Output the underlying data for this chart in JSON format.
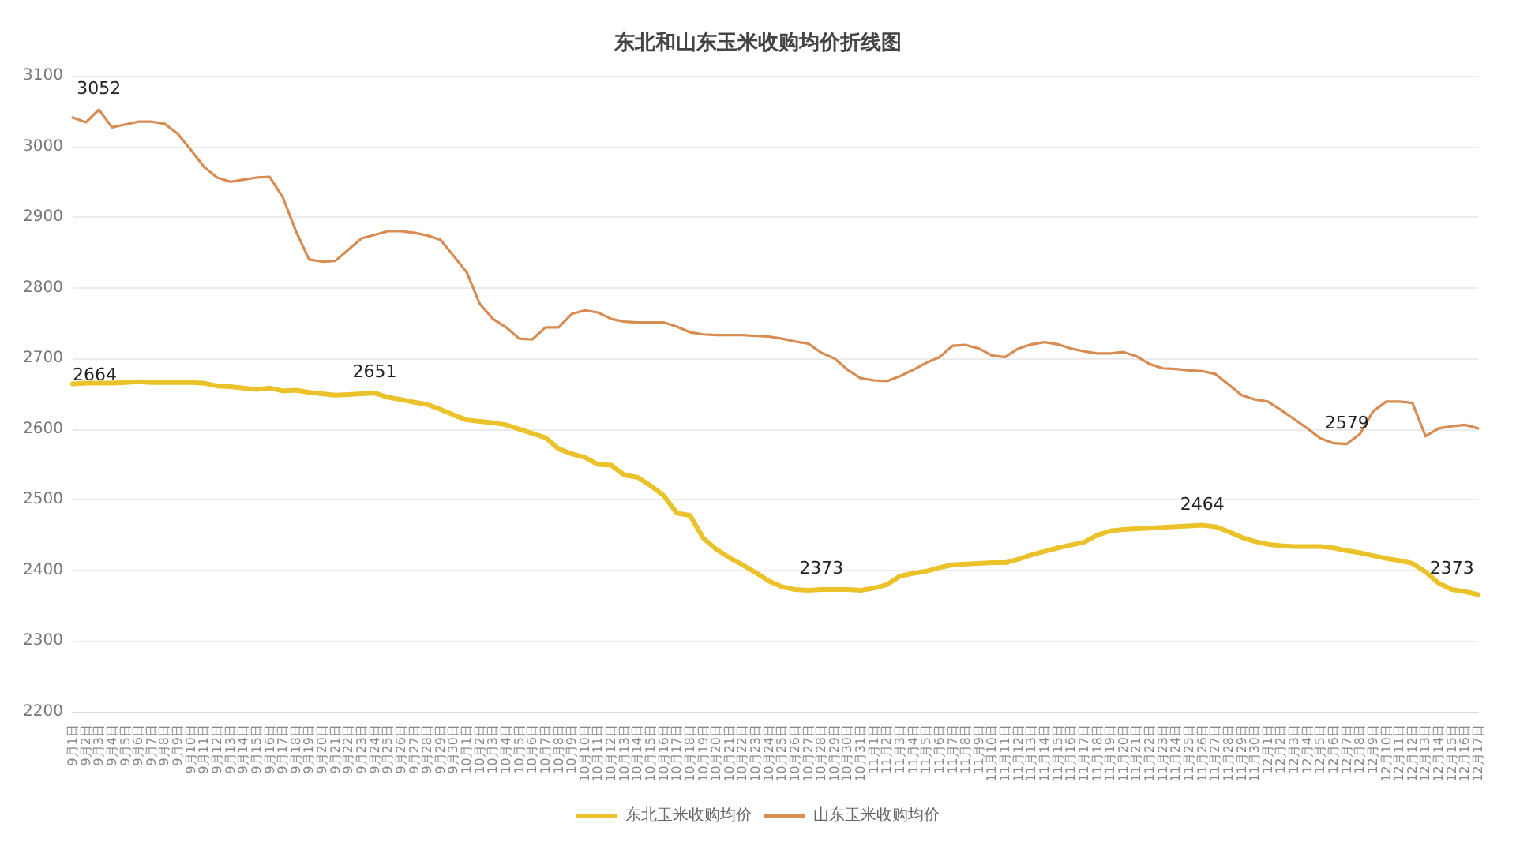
{
  "chart_data": {
    "type": "line",
    "title": "东北和山东玉米收购均价折线图",
    "categories": [
      "9月1日",
      "9月2日",
      "9月3日",
      "9月4日",
      "9月5日",
      "9月6日",
      "9月7日",
      "9月8日",
      "9月9日",
      "9月10日",
      "9月11日",
      "9月12日",
      "9月13日",
      "9月14日",
      "9月15日",
      "9月16日",
      "9月17日",
      "9月18日",
      "9月19日",
      "9月20日",
      "9月21日",
      "9月22日",
      "9月23日",
      "9月24日",
      "9月25日",
      "9月26日",
      "9月27日",
      "9月28日",
      "9月29日",
      "9月30日",
      "10月1日",
      "10月2日",
      "10月3日",
      "10月4日",
      "10月5日",
      "10月6日",
      "10月7日",
      "10月8日",
      "10月9日",
      "10月10日",
      "10月11日",
      "10月12日",
      "10月13日",
      "10月14日",
      "10月15日",
      "10月16日",
      "10月17日",
      "10月18日",
      "10月19日",
      "10月20日",
      "10月21日",
      "10月22日",
      "10月23日",
      "10月24日",
      "10月25日",
      "10月26日",
      "10月27日",
      "10月28日",
      "10月29日",
      "10月30日",
      "10月31日",
      "11月1日",
      "11月2日",
      "11月3日",
      "11月4日",
      "11月5日",
      "11月6日",
      "11月7日",
      "11月8日",
      "11月9日",
      "11月10日",
      "11月11日",
      "11月12日",
      "11月13日",
      "11月14日",
      "11月15日",
      "11月16日",
      "11月17日",
      "11月18日",
      "11月19日",
      "11月20日",
      "11月21日",
      "11月22日",
      "11月23日",
      "11月24日",
      "11月25日",
      "11月26日",
      "11月27日",
      "11月28日",
      "11月29日",
      "11月30日",
      "12月1日",
      "12月2日",
      "12月3日",
      "12月4日",
      "12月5日",
      "12月6日",
      "12月7日",
      "12月8日",
      "12月9日",
      "12月10日",
      "12月11日",
      "12月12日",
      "12月13日",
      "12月14日",
      "12月15日",
      "12月16日",
      "12月17日"
    ],
    "series": [
      {
        "name": "东北玉米收购均价",
        "color": "#ecc22a",
        "values": [
          2664,
          2665,
          2665,
          2665,
          2666,
          2667,
          2666,
          2666,
          2666,
          2666,
          2665,
          2661,
          2660,
          2658,
          2656,
          2658,
          2654,
          2655,
          2652,
          2650,
          2648,
          2649,
          2650,
          2651,
          2645,
          2642,
          2638,
          2635,
          2628,
          2620,
          2613,
          2611,
          2609,
          2606,
          2600,
          2594,
          2588,
          2572,
          2565,
          2560,
          2550,
          2549,
          2535,
          2532,
          2520,
          2506,
          2481,
          2478,
          2446,
          2430,
          2418,
          2408,
          2397,
          2385,
          2377,
          2373,
          2372,
          2373,
          2373,
          2373,
          2372,
          2375,
          2380,
          2392,
          2396,
          2399,
          2404,
          2408,
          2409,
          2410,
          2411,
          2411,
          2416,
          2422,
          2427,
          2432,
          2436,
          2440,
          2450,
          2456,
          2458,
          2459,
          2460,
          2461,
          2462,
          2463,
          2464,
          2462,
          2455,
          2447,
          2441,
          2437,
          2435,
          2434,
          2434,
          2434,
          2432,
          2428,
          2425,
          2421,
          2417,
          2414,
          2410,
          2398,
          2382,
          2373,
          2370,
          2366
        ],
        "value_labels": [
          "2664",
          null,
          null,
          null,
          null,
          null,
          null,
          null,
          null,
          null,
          null,
          null,
          null,
          null,
          null,
          null,
          null,
          null,
          null,
          null,
          null,
          null,
          null,
          "2651",
          null,
          null,
          null,
          null,
          null,
          null,
          null,
          null,
          null,
          null,
          null,
          null,
          null,
          null,
          null,
          null,
          null,
          null,
          null,
          null,
          null,
          null,
          null,
          null,
          null,
          null,
          null,
          null,
          null,
          null,
          null,
          null,
          null,
          "2373",
          null,
          null,
          null,
          null,
          null,
          null,
          null,
          null,
          null,
          null,
          null,
          null,
          null,
          null,
          null,
          null,
          null,
          null,
          null,
          null,
          null,
          null,
          null,
          null,
          null,
          null,
          null,
          null,
          "2464",
          null,
          null,
          null,
          null,
          null,
          null,
          null,
          null,
          null,
          null,
          null,
          null,
          null,
          null,
          null,
          null,
          null,
          null,
          "2373",
          null,
          null
        ]
      },
      {
        "name": "山东玉米收购均价",
        "color": "#d88c52",
        "values": [
          3041,
          3034,
          3052,
          3027,
          3031,
          3035,
          3035,
          3032,
          3018,
          2995,
          2971,
          2956,
          2950,
          2953,
          2956,
          2957,
          2928,
          2880,
          2840,
          2837,
          2838,
          2854,
          2870,
          2875,
          2880,
          2880,
          2878,
          2874,
          2868,
          2845,
          2822,
          2777,
          2756,
          2744,
          2728,
          2727,
          2744,
          2744,
          2763,
          2768,
          2765,
          2756,
          2752,
          2751,
          2751,
          2751,
          2745,
          2737,
          2734,
          2733,
          2733,
          2733,
          2732,
          2731,
          2728,
          2724,
          2721,
          2708,
          2700,
          2684,
          2672,
          2669,
          2668,
          2675,
          2684,
          2694,
          2702,
          2718,
          2719,
          2714,
          2704,
          2702,
          2714,
          2720,
          2723,
          2720,
          2714,
          2710,
          2707,
          2707,
          2709,
          2703,
          2692,
          2686,
          2685,
          2683,
          2682,
          2678,
          2663,
          2648,
          2642,
          2639,
          2627,
          2614,
          2601,
          2587,
          2580,
          2579,
          2593,
          2625,
          2639,
          2639,
          2637,
          2590,
          2601,
          2604,
          2606,
          2601
        ],
        "value_labels": [
          null,
          null,
          "3052",
          null,
          null,
          null,
          null,
          null,
          null,
          null,
          null,
          null,
          null,
          null,
          null,
          null,
          null,
          null,
          null,
          null,
          null,
          null,
          null,
          null,
          null,
          null,
          null,
          null,
          null,
          null,
          null,
          null,
          null,
          null,
          null,
          null,
          null,
          null,
          null,
          null,
          null,
          null,
          null,
          null,
          null,
          null,
          null,
          null,
          null,
          null,
          null,
          null,
          null,
          null,
          null,
          null,
          null,
          null,
          null,
          null,
          null,
          null,
          null,
          null,
          null,
          null,
          null,
          null,
          null,
          null,
          null,
          null,
          null,
          null,
          null,
          null,
          null,
          null,
          null,
          null,
          null,
          null,
          null,
          null,
          null,
          null,
          null,
          null,
          null,
          null,
          null,
          null,
          null,
          null,
          null,
          null,
          null,
          "2579",
          null,
          null,
          null,
          null,
          null,
          null,
          null,
          null,
          null,
          null
        ]
      }
    ],
    "ylim": [
      2200,
      3100
    ],
    "yticks": [
      2200,
      2300,
      2400,
      2500,
      2600,
      2700,
      2800,
      2900,
      3000,
      3100
    ],
    "grid": "y",
    "legend": "bottom",
    "marker": "none",
    "line_style": "solid"
  }
}
